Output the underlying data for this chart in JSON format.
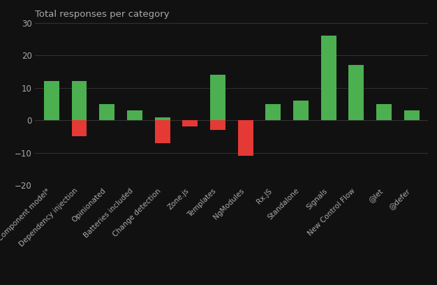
{
  "title": "Total responses per category",
  "categories": [
    "Component model*",
    "Dependency injection",
    "Opinionated",
    "Batteries included",
    "Change detection",
    "Zone.js",
    "Templates",
    "NgModules",
    "Rx.JS",
    "Standalone",
    "Signals",
    "New Control Flow",
    "@let",
    "@defer"
  ],
  "positive_values": [
    12,
    12,
    5,
    3,
    1,
    0,
    14,
    0,
    5,
    6,
    26,
    17,
    5,
    3
  ],
  "negative_values": [
    0,
    -5,
    0,
    0,
    -7,
    -2,
    -3,
    -11,
    0,
    0,
    0,
    0,
    0,
    0
  ],
  "positive_color": "#4caf50",
  "negative_color": "#e53935",
  "background_color": "#111111",
  "text_color": "#aaaaaa",
  "grid_color": "#333333",
  "ylim": [
    -20,
    30
  ],
  "yticks": [
    -20,
    -10,
    0,
    10,
    20,
    30
  ]
}
